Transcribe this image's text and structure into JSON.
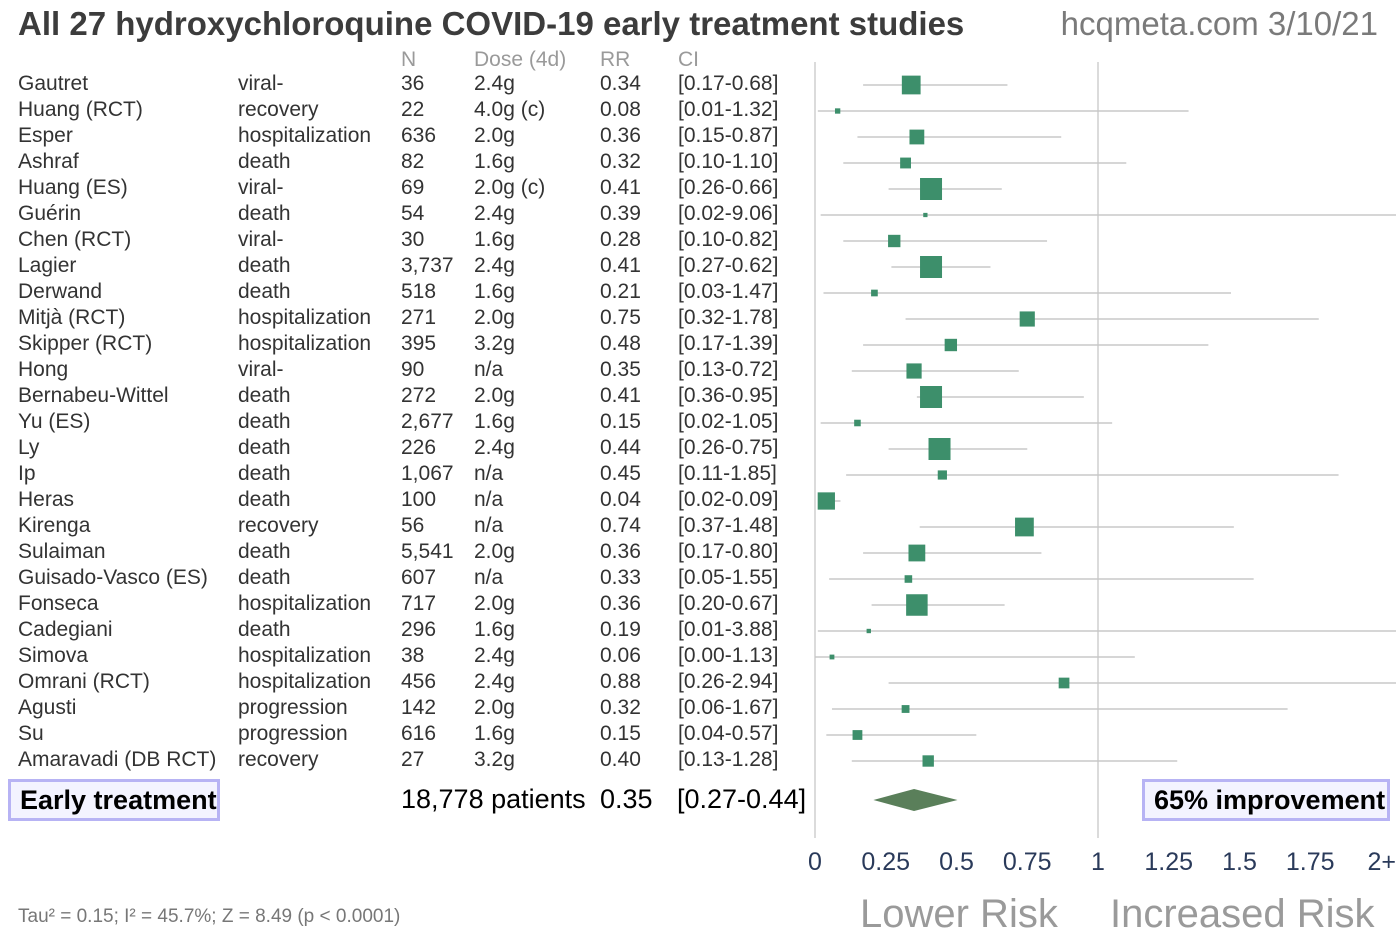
{
  "title": "All 27 hydroxychloroquine COVID-19 early treatment studies",
  "site": "hcqmeta.com 3/10/21",
  "columns": {
    "n": "N",
    "dose": "Dose (4d)",
    "rr": "RR",
    "ci": "CI"
  },
  "colors": {
    "marker": "#3d8f6b",
    "diamond": "#5a7f5a",
    "ci_line": "#c8c8c8",
    "box_border": "#b7b3f4"
  },
  "chart_data": {
    "type": "forest",
    "xlim": [
      0,
      2
    ],
    "x_tick_labels": [
      "0",
      "0.25",
      "0.5",
      "0.75",
      "1",
      "1.25",
      "1.5",
      "1.75",
      "2+"
    ],
    "x_ticks": [
      0,
      0.25,
      0.5,
      0.75,
      1,
      1.25,
      1.5,
      1.75,
      2
    ],
    "reference_line": 1,
    "rows": [
      {
        "study": "Gautret",
        "outcome": "viral-",
        "n": "36",
        "dose": "2.4g",
        "rr": 0.34,
        "rr_text": "0.34",
        "ci": [
          0.17,
          0.68
        ],
        "ci_text": "[0.17-0.68]"
      },
      {
        "study": "Huang (RCT)",
        "outcome": "recovery",
        "n": "22",
        "dose": "4.0g (c)",
        "rr": 0.08,
        "rr_text": "0.08",
        "ci": [
          0.01,
          1.32
        ],
        "ci_text": "[0.01-1.32]"
      },
      {
        "study": "Esper",
        "outcome": "hospitalization",
        "n": "636",
        "dose": "2.0g",
        "rr": 0.36,
        "rr_text": "0.36",
        "ci": [
          0.15,
          0.87
        ],
        "ci_text": "[0.15-0.87]"
      },
      {
        "study": "Ashraf",
        "outcome": "death",
        "n": "82",
        "dose": "1.6g",
        "rr": 0.32,
        "rr_text": "0.32",
        "ci": [
          0.1,
          1.1
        ],
        "ci_text": "[0.10-1.10]"
      },
      {
        "study": "Huang (ES)",
        "outcome": "viral-",
        "n": "69",
        "dose": "2.0g (c)",
        "rr": 0.41,
        "rr_text": "0.41",
        "ci": [
          0.26,
          0.66
        ],
        "ci_text": "[0.26-0.66]"
      },
      {
        "study": "Guérin",
        "outcome": "death",
        "n": "54",
        "dose": "2.4g",
        "rr": 0.39,
        "rr_text": "0.39",
        "ci": [
          0.02,
          9.06
        ],
        "ci_text": "[0.02-9.06]"
      },
      {
        "study": "Chen (RCT)",
        "outcome": "viral-",
        "n": "30",
        "dose": "1.6g",
        "rr": 0.28,
        "rr_text": "0.28",
        "ci": [
          0.1,
          0.82
        ],
        "ci_text": "[0.10-0.82]"
      },
      {
        "study": "Lagier",
        "outcome": "death",
        "n": "3,737",
        "dose": "2.4g",
        "rr": 0.41,
        "rr_text": "0.41",
        "ci": [
          0.27,
          0.62
        ],
        "ci_text": "[0.27-0.62]"
      },
      {
        "study": "Derwand",
        "outcome": "death",
        "n": "518",
        "dose": "1.6g",
        "rr": 0.21,
        "rr_text": "0.21",
        "ci": [
          0.03,
          1.47
        ],
        "ci_text": "[0.03-1.47]"
      },
      {
        "study": "Mitjà (RCT)",
        "outcome": "hospitalization",
        "n": "271",
        "dose": "2.0g",
        "rr": 0.75,
        "rr_text": "0.75",
        "ci": [
          0.32,
          1.78
        ],
        "ci_text": "[0.32-1.78]"
      },
      {
        "study": "Skipper (RCT)",
        "outcome": "hospitalization",
        "n": "395",
        "dose": "3.2g",
        "rr": 0.48,
        "rr_text": "0.48",
        "ci": [
          0.17,
          1.39
        ],
        "ci_text": "[0.17-1.39]"
      },
      {
        "study": "Hong",
        "outcome": "viral-",
        "n": "90",
        "dose": "n/a",
        "rr": 0.35,
        "rr_text": "0.35",
        "ci": [
          0.13,
          0.72
        ],
        "ci_text": "[0.13-0.72]"
      },
      {
        "study": "Bernabeu-Wittel",
        "outcome": "death",
        "n": "272",
        "dose": "2.0g",
        "rr": 0.41,
        "rr_text": "0.41",
        "ci": [
          0.36,
          0.95
        ],
        "ci_text": "[0.36-0.95]"
      },
      {
        "study": "Yu (ES)",
        "outcome": "death",
        "n": "2,677",
        "dose": "1.6g",
        "rr": 0.15,
        "rr_text": "0.15",
        "ci": [
          0.02,
          1.05
        ],
        "ci_text": "[0.02-1.05]"
      },
      {
        "study": "Ly",
        "outcome": "death",
        "n": "226",
        "dose": "2.4g",
        "rr": 0.44,
        "rr_text": "0.44",
        "ci": [
          0.26,
          0.75
        ],
        "ci_text": "[0.26-0.75]"
      },
      {
        "study": "Ip",
        "outcome": "death",
        "n": "1,067",
        "dose": "n/a",
        "rr": 0.45,
        "rr_text": "0.45",
        "ci": [
          0.11,
          1.85
        ],
        "ci_text": "[0.11-1.85]"
      },
      {
        "study": "Heras",
        "outcome": "death",
        "n": "100",
        "dose": "n/a",
        "rr": 0.04,
        "rr_text": "0.04",
        "ci": [
          0.02,
          0.09
        ],
        "ci_text": "[0.02-0.09]"
      },
      {
        "study": "Kirenga",
        "outcome": "recovery",
        "n": "56",
        "dose": "n/a",
        "rr": 0.74,
        "rr_text": "0.74",
        "ci": [
          0.37,
          1.48
        ],
        "ci_text": "[0.37-1.48]"
      },
      {
        "study": "Sulaiman",
        "outcome": "death",
        "n": "5,541",
        "dose": "2.0g",
        "rr": 0.36,
        "rr_text": "0.36",
        "ci": [
          0.17,
          0.8
        ],
        "ci_text": "[0.17-0.80]"
      },
      {
        "study": "Guisado-Vasco (ES)",
        "outcome": "death",
        "n": "607",
        "dose": "n/a",
        "rr": 0.33,
        "rr_text": "0.33",
        "ci": [
          0.05,
          1.55
        ],
        "ci_text": "[0.05-1.55]"
      },
      {
        "study": "Fonseca",
        "outcome": "hospitalization",
        "n": "717",
        "dose": "2.0g",
        "rr": 0.36,
        "rr_text": "0.36",
        "ci": [
          0.2,
          0.67
        ],
        "ci_text": "[0.20-0.67]"
      },
      {
        "study": "Cadegiani",
        "outcome": "death",
        "n": "296",
        "dose": "1.6g",
        "rr": 0.19,
        "rr_text": "0.19",
        "ci": [
          0.01,
          3.88
        ],
        "ci_text": "[0.01-3.88]"
      },
      {
        "study": "Simova",
        "outcome": "hospitalization",
        "n": "38",
        "dose": "2.4g",
        "rr": 0.06,
        "rr_text": "0.06",
        "ci": [
          0.0,
          1.13
        ],
        "ci_text": "[0.00-1.13]"
      },
      {
        "study": "Omrani (RCT)",
        "outcome": "hospitalization",
        "n": "456",
        "dose": "2.4g",
        "rr": 0.88,
        "rr_text": "0.88",
        "ci": [
          0.26,
          2.94
        ],
        "ci_text": "[0.26-2.94]"
      },
      {
        "study": "Agusti",
        "outcome": "progression",
        "n": "142",
        "dose": "2.0g",
        "rr": 0.32,
        "rr_text": "0.32",
        "ci": [
          0.06,
          1.67
        ],
        "ci_text": "[0.06-1.67]"
      },
      {
        "study": "Su",
        "outcome": "progression",
        "n": "616",
        "dose": "1.6g",
        "rr": 0.15,
        "rr_text": "0.15",
        "ci": [
          0.04,
          0.57
        ],
        "ci_text": "[0.04-0.57]"
      },
      {
        "study": "Amaravadi (DB RCT)",
        "outcome": "recovery",
        "n": "27",
        "dose": "3.2g",
        "rr": 0.4,
        "rr_text": "0.40",
        "ci": [
          0.13,
          1.28
        ],
        "ci_text": "[0.13-1.28]"
      }
    ],
    "summary": {
      "label": "Early treatment",
      "patients_text": "18,778 patients",
      "rr": 0.35,
      "rr_text": "0.35",
      "ci": [
        0.27,
        0.44
      ],
      "ci_text": "[0.27-0.44]",
      "improvement_text": "65% improvement"
    },
    "stats_text": "Tau² = 0.15; I² = 45.7%; Z = 8.49 (p < 0.0001)",
    "lower_label": "Lower Risk",
    "higher_label": "Increased Risk"
  }
}
